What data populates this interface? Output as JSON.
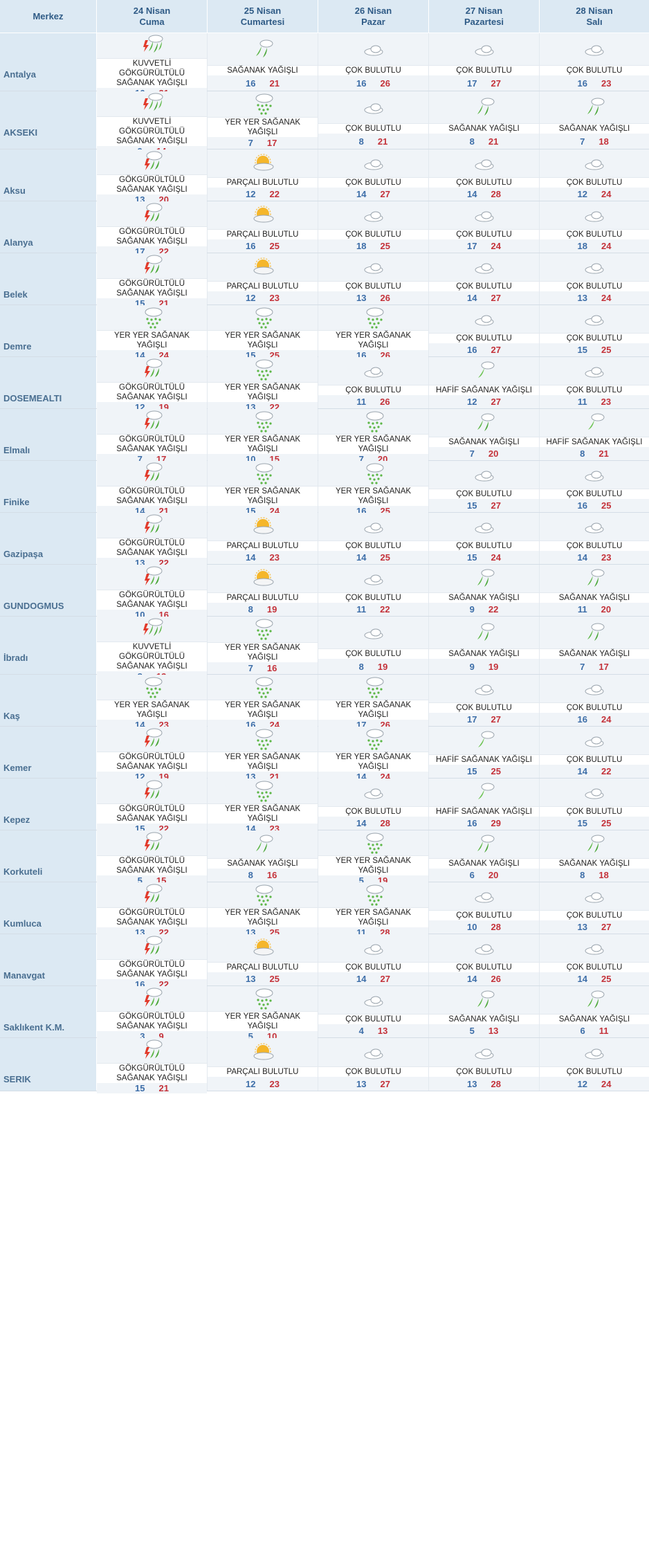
{
  "header": {
    "city_label": "Merkez",
    "days": [
      {
        "date": "24 Nisan",
        "dow": "Cuma"
      },
      {
        "date": "25 Nisan",
        "dow": "Cumartesi"
      },
      {
        "date": "26 Nisan",
        "dow": "Pazar"
      },
      {
        "date": "27 Nisan",
        "dow": "Pazartesi"
      },
      {
        "date": "28 Nisan",
        "dow": "Salı"
      }
    ]
  },
  "rows": [
    {
      "city": "Antalya",
      "days": [
        {
          "icon": "heavy-thunder-rain-icon",
          "desc": "KUVVETLİ GÖKGÜRÜLTÜLÜ SAĞANAK YAĞIŞLI",
          "min": "16",
          "max": "21"
        },
        {
          "icon": "rain-showers-icon",
          "desc": "SAĞANAK YAĞIŞLI",
          "min": "16",
          "max": "21"
        },
        {
          "icon": "cloudy-icon",
          "desc": "ÇOK BULUTLU",
          "min": "16",
          "max": "26"
        },
        {
          "icon": "cloudy-icon",
          "desc": "ÇOK BULUTLU",
          "min": "17",
          "max": "27"
        },
        {
          "icon": "cloudy-icon",
          "desc": "ÇOK BULUTLU",
          "min": "16",
          "max": "23"
        }
      ]
    },
    {
      "city": "AKSEKI",
      "days": [
        {
          "icon": "heavy-thunder-rain-icon",
          "desc": "KUVVETLİ GÖKGÜRÜLTÜLÜ SAĞANAK YAĞIŞLI",
          "min": "9",
          "max": "14"
        },
        {
          "icon": "scattered-showers-icon",
          "desc": "YER YER SAĞANAK YAĞIŞLI",
          "min": "7",
          "max": "17"
        },
        {
          "icon": "cloudy-icon",
          "desc": "ÇOK BULUTLU",
          "min": "8",
          "max": "21"
        },
        {
          "icon": "rain-showers-icon",
          "desc": "SAĞANAK YAĞIŞLI",
          "min": "8",
          "max": "21"
        },
        {
          "icon": "rain-showers-icon",
          "desc": "SAĞANAK YAĞIŞLI",
          "min": "7",
          "max": "18"
        }
      ]
    },
    {
      "city": "Aksu",
      "days": [
        {
          "icon": "thunder-rain-icon",
          "desc": "GÖKGÜRÜLTÜLÜ SAĞANAK YAĞIŞLI",
          "min": "13",
          "max": "20"
        },
        {
          "icon": "partly-cloudy-icon",
          "desc": "PARÇALI BULUTLU",
          "min": "12",
          "max": "22"
        },
        {
          "icon": "cloudy-icon",
          "desc": "ÇOK BULUTLU",
          "min": "14",
          "max": "27"
        },
        {
          "icon": "cloudy-icon",
          "desc": "ÇOK BULUTLU",
          "min": "14",
          "max": "28"
        },
        {
          "icon": "cloudy-icon",
          "desc": "ÇOK BULUTLU",
          "min": "12",
          "max": "24"
        }
      ]
    },
    {
      "city": "Alanya",
      "days": [
        {
          "icon": "thunder-rain-icon",
          "desc": "GÖKGÜRÜLTÜLÜ SAĞANAK YAĞIŞLI",
          "min": "17",
          "max": "22"
        },
        {
          "icon": "partly-cloudy-icon",
          "desc": "PARÇALI BULUTLU",
          "min": "16",
          "max": "25"
        },
        {
          "icon": "cloudy-icon",
          "desc": "ÇOK BULUTLU",
          "min": "18",
          "max": "25"
        },
        {
          "icon": "cloudy-icon",
          "desc": "ÇOK BULUTLU",
          "min": "17",
          "max": "24"
        },
        {
          "icon": "cloudy-icon",
          "desc": "ÇOK BULUTLU",
          "min": "18",
          "max": "24"
        }
      ]
    },
    {
      "city": "Belek",
      "days": [
        {
          "icon": "thunder-rain-icon",
          "desc": "GÖKGÜRÜLTÜLÜ SAĞANAK YAĞIŞLI",
          "min": "15",
          "max": "21"
        },
        {
          "icon": "partly-cloudy-icon",
          "desc": "PARÇALI BULUTLU",
          "min": "12",
          "max": "23"
        },
        {
          "icon": "cloudy-icon",
          "desc": "ÇOK BULUTLU",
          "min": "13",
          "max": "26"
        },
        {
          "icon": "cloudy-icon",
          "desc": "ÇOK BULUTLU",
          "min": "14",
          "max": "27"
        },
        {
          "icon": "cloudy-icon",
          "desc": "ÇOK BULUTLU",
          "min": "13",
          "max": "24"
        }
      ]
    },
    {
      "city": "Demre",
      "days": [
        {
          "icon": "scattered-showers-icon",
          "desc": "YER YER SAĞANAK YAĞIŞLI",
          "min": "14",
          "max": "24"
        },
        {
          "icon": "scattered-showers-icon",
          "desc": "YER YER SAĞANAK YAĞIŞLI",
          "min": "15",
          "max": "25"
        },
        {
          "icon": "scattered-showers-icon",
          "desc": "YER YER SAĞANAK YAĞIŞLI",
          "min": "16",
          "max": "26"
        },
        {
          "icon": "cloudy-icon",
          "desc": "ÇOK BULUTLU",
          "min": "16",
          "max": "27"
        },
        {
          "icon": "cloudy-icon",
          "desc": "ÇOK BULUTLU",
          "min": "15",
          "max": "25"
        }
      ]
    },
    {
      "city": "DOSEMEALTI",
      "days": [
        {
          "icon": "thunder-rain-icon",
          "desc": "GÖKGÜRÜLTÜLÜ SAĞANAK YAĞIŞLI",
          "min": "12",
          "max": "19"
        },
        {
          "icon": "scattered-showers-icon",
          "desc": "YER YER SAĞANAK YAĞIŞLI",
          "min": "13",
          "max": "22"
        },
        {
          "icon": "cloudy-icon",
          "desc": "ÇOK BULUTLU",
          "min": "11",
          "max": "26"
        },
        {
          "icon": "light-showers-icon",
          "desc": "HAFİF SAĞANAK YAĞIŞLI",
          "min": "12",
          "max": "27"
        },
        {
          "icon": "cloudy-icon",
          "desc": "ÇOK BULUTLU",
          "min": "11",
          "max": "23"
        }
      ]
    },
    {
      "city": "Elmalı",
      "days": [
        {
          "icon": "thunder-rain-icon",
          "desc": "GÖKGÜRÜLTÜLÜ SAĞANAK YAĞIŞLI",
          "min": "7",
          "max": "17"
        },
        {
          "icon": "scattered-showers-icon",
          "desc": "YER YER SAĞANAK YAĞIŞLI",
          "min": "10",
          "max": "15"
        },
        {
          "icon": "scattered-showers-icon",
          "desc": "YER YER SAĞANAK YAĞIŞLI",
          "min": "7",
          "max": "20"
        },
        {
          "icon": "rain-showers-icon",
          "desc": "SAĞANAK YAĞIŞLI",
          "min": "7",
          "max": "20"
        },
        {
          "icon": "light-showers-icon",
          "desc": "HAFİF SAĞANAK YAĞIŞLI",
          "min": "8",
          "max": "21"
        }
      ]
    },
    {
      "city": "Finike",
      "days": [
        {
          "icon": "thunder-rain-icon",
          "desc": "GÖKGÜRÜLTÜLÜ SAĞANAK YAĞIŞLI",
          "min": "14",
          "max": "21"
        },
        {
          "icon": "scattered-showers-icon",
          "desc": "YER YER SAĞANAK YAĞIŞLI",
          "min": "15",
          "max": "24"
        },
        {
          "icon": "scattered-showers-icon",
          "desc": "YER YER SAĞANAK YAĞIŞLI",
          "min": "16",
          "max": "25"
        },
        {
          "icon": "cloudy-icon",
          "desc": "ÇOK BULUTLU",
          "min": "15",
          "max": "27"
        },
        {
          "icon": "cloudy-icon",
          "desc": "ÇOK BULUTLU",
          "min": "16",
          "max": "25"
        }
      ]
    },
    {
      "city": "Gazipaşa",
      "days": [
        {
          "icon": "thunder-rain-icon",
          "desc": "GÖKGÜRÜLTÜLÜ SAĞANAK YAĞIŞLI",
          "min": "13",
          "max": "22"
        },
        {
          "icon": "partly-cloudy-icon",
          "desc": "PARÇALI BULUTLU",
          "min": "14",
          "max": "23"
        },
        {
          "icon": "cloudy-icon",
          "desc": "ÇOK BULUTLU",
          "min": "14",
          "max": "25"
        },
        {
          "icon": "cloudy-icon",
          "desc": "ÇOK BULUTLU",
          "min": "15",
          "max": "24"
        },
        {
          "icon": "cloudy-icon",
          "desc": "ÇOK BULUTLU",
          "min": "14",
          "max": "23"
        }
      ]
    },
    {
      "city": "GUNDOGMUS",
      "days": [
        {
          "icon": "thunder-rain-icon",
          "desc": "GÖKGÜRÜLTÜLÜ SAĞANAK YAĞIŞLI",
          "min": "10",
          "max": "16"
        },
        {
          "icon": "partly-cloudy-icon",
          "desc": "PARÇALI BULUTLU",
          "min": "8",
          "max": "19"
        },
        {
          "icon": "cloudy-icon",
          "desc": "ÇOK BULUTLU",
          "min": "11",
          "max": "22"
        },
        {
          "icon": "rain-showers-icon",
          "desc": "SAĞANAK YAĞIŞLI",
          "min": "9",
          "max": "22"
        },
        {
          "icon": "rain-showers-icon",
          "desc": "SAĞANAK YAĞIŞLI",
          "min": "11",
          "max": "20"
        }
      ]
    },
    {
      "city": "İbradı",
      "days": [
        {
          "icon": "heavy-thunder-rain-icon",
          "desc": "KUVVETLİ GÖKGÜRÜLTÜLÜ SAĞANAK YAĞIŞLI",
          "min": "8",
          "max": "13"
        },
        {
          "icon": "scattered-showers-icon",
          "desc": "YER YER SAĞANAK YAĞIŞLI",
          "min": "7",
          "max": "16"
        },
        {
          "icon": "cloudy-icon",
          "desc": "ÇOK BULUTLU",
          "min": "8",
          "max": "19"
        },
        {
          "icon": "rain-showers-icon",
          "desc": "SAĞANAK YAĞIŞLI",
          "min": "9",
          "max": "19"
        },
        {
          "icon": "rain-showers-icon",
          "desc": "SAĞANAK YAĞIŞLI",
          "min": "7",
          "max": "17"
        }
      ]
    },
    {
      "city": "Kaş",
      "days": [
        {
          "icon": "scattered-showers-icon",
          "desc": "YER YER SAĞANAK YAĞIŞLI",
          "min": "14",
          "max": "23"
        },
        {
          "icon": "scattered-showers-icon",
          "desc": "YER YER SAĞANAK YAĞIŞLI",
          "min": "16",
          "max": "24"
        },
        {
          "icon": "scattered-showers-icon",
          "desc": "YER YER SAĞANAK YAĞIŞLI",
          "min": "17",
          "max": "26"
        },
        {
          "icon": "cloudy-icon",
          "desc": "ÇOK BULUTLU",
          "min": "17",
          "max": "27"
        },
        {
          "icon": "cloudy-icon",
          "desc": "ÇOK BULUTLU",
          "min": "16",
          "max": "24"
        }
      ]
    },
    {
      "city": "Kemer",
      "days": [
        {
          "icon": "thunder-rain-icon",
          "desc": "GÖKGÜRÜLTÜLÜ SAĞANAK YAĞIŞLI",
          "min": "12",
          "max": "19"
        },
        {
          "icon": "scattered-showers-icon",
          "desc": "YER YER SAĞANAK YAĞIŞLI",
          "min": "13",
          "max": "21"
        },
        {
          "icon": "scattered-showers-icon",
          "desc": "YER YER SAĞANAK YAĞIŞLI",
          "min": "14",
          "max": "24"
        },
        {
          "icon": "light-showers-icon",
          "desc": "HAFİF SAĞANAK YAĞIŞLI",
          "min": "15",
          "max": "25"
        },
        {
          "icon": "cloudy-icon",
          "desc": "ÇOK BULUTLU",
          "min": "14",
          "max": "22"
        }
      ]
    },
    {
      "city": "Kepez",
      "days": [
        {
          "icon": "thunder-rain-icon",
          "desc": "GÖKGÜRÜLTÜLÜ SAĞANAK YAĞIŞLI",
          "min": "15",
          "max": "22"
        },
        {
          "icon": "scattered-showers-icon",
          "desc": "YER YER SAĞANAK YAĞIŞLI",
          "min": "14",
          "max": "23"
        },
        {
          "icon": "cloudy-icon",
          "desc": "ÇOK BULUTLU",
          "min": "14",
          "max": "28"
        },
        {
          "icon": "light-showers-icon",
          "desc": "HAFİF SAĞANAK YAĞIŞLI",
          "min": "16",
          "max": "29"
        },
        {
          "icon": "cloudy-icon",
          "desc": "ÇOK BULUTLU",
          "min": "15",
          "max": "25"
        }
      ]
    },
    {
      "city": "Korkuteli",
      "days": [
        {
          "icon": "thunder-rain-icon",
          "desc": "GÖKGÜRÜLTÜLÜ SAĞANAK YAĞIŞLI",
          "min": "5",
          "max": "15"
        },
        {
          "icon": "rain-showers-icon",
          "desc": "SAĞANAK YAĞIŞLI",
          "min": "8",
          "max": "16"
        },
        {
          "icon": "scattered-showers-icon",
          "desc": "YER YER SAĞANAK YAĞIŞLI",
          "min": "5",
          "max": "19"
        },
        {
          "icon": "rain-showers-icon",
          "desc": "SAĞANAK YAĞIŞLI",
          "min": "6",
          "max": "20"
        },
        {
          "icon": "rain-showers-icon",
          "desc": "SAĞANAK YAĞIŞLI",
          "min": "8",
          "max": "18"
        }
      ]
    },
    {
      "city": "Kumluca",
      "days": [
        {
          "icon": "thunder-rain-icon",
          "desc": "GÖKGÜRÜLTÜLÜ SAĞANAK YAĞIŞLI",
          "min": "13",
          "max": "22"
        },
        {
          "icon": "scattered-showers-icon",
          "desc": "YER YER SAĞANAK YAĞIŞLI",
          "min": "13",
          "max": "25"
        },
        {
          "icon": "scattered-showers-icon",
          "desc": "YER YER SAĞANAK YAĞIŞLI",
          "min": "11",
          "max": "28"
        },
        {
          "icon": "cloudy-icon",
          "desc": "ÇOK BULUTLU",
          "min": "10",
          "max": "28"
        },
        {
          "icon": "cloudy-icon",
          "desc": "ÇOK BULUTLU",
          "min": "13",
          "max": "27"
        }
      ]
    },
    {
      "city": "Manavgat",
      "days": [
        {
          "icon": "thunder-rain-icon",
          "desc": "GÖKGÜRÜLTÜLÜ SAĞANAK YAĞIŞLI",
          "min": "16",
          "max": "22"
        },
        {
          "icon": "partly-cloudy-icon",
          "desc": "PARÇALI BULUTLU",
          "min": "13",
          "max": "25"
        },
        {
          "icon": "cloudy-icon",
          "desc": "ÇOK BULUTLU",
          "min": "14",
          "max": "27"
        },
        {
          "icon": "cloudy-icon",
          "desc": "ÇOK BULUTLU",
          "min": "14",
          "max": "26"
        },
        {
          "icon": "cloudy-icon",
          "desc": "ÇOK BULUTLU",
          "min": "14",
          "max": "25"
        }
      ]
    },
    {
      "city": "Saklıkent K.M.",
      "days": [
        {
          "icon": "thunder-rain-icon",
          "desc": "GÖKGÜRÜLTÜLÜ SAĞANAK YAĞIŞLI",
          "min": "3",
          "max": "9"
        },
        {
          "icon": "scattered-showers-icon",
          "desc": "YER YER SAĞANAK YAĞIŞLI",
          "min": "5",
          "max": "10"
        },
        {
          "icon": "cloudy-icon",
          "desc": "ÇOK BULUTLU",
          "min": "4",
          "max": "13"
        },
        {
          "icon": "rain-showers-icon",
          "desc": "SAĞANAK YAĞIŞLI",
          "min": "5",
          "max": "13"
        },
        {
          "icon": "rain-showers-icon",
          "desc": "SAĞANAK YAĞIŞLI",
          "min": "6",
          "max": "11"
        }
      ]
    },
    {
      "city": "SERIK",
      "days": [
        {
          "icon": "thunder-rain-icon",
          "desc": "GÖKGÜRÜLTÜLÜ SAĞANAK YAĞIŞLI",
          "min": "15",
          "max": "21"
        },
        {
          "icon": "partly-cloudy-icon",
          "desc": "PARÇALI BULUTLU",
          "min": "12",
          "max": "23"
        },
        {
          "icon": "cloudy-icon",
          "desc": "ÇOK BULUTLU",
          "min": "13",
          "max": "27"
        },
        {
          "icon": "cloudy-icon",
          "desc": "ÇOK BULUTLU",
          "min": "13",
          "max": "28"
        },
        {
          "icon": "cloudy-icon",
          "desc": "ÇOK BULUTLU",
          "min": "12",
          "max": "24"
        }
      ]
    }
  ]
}
